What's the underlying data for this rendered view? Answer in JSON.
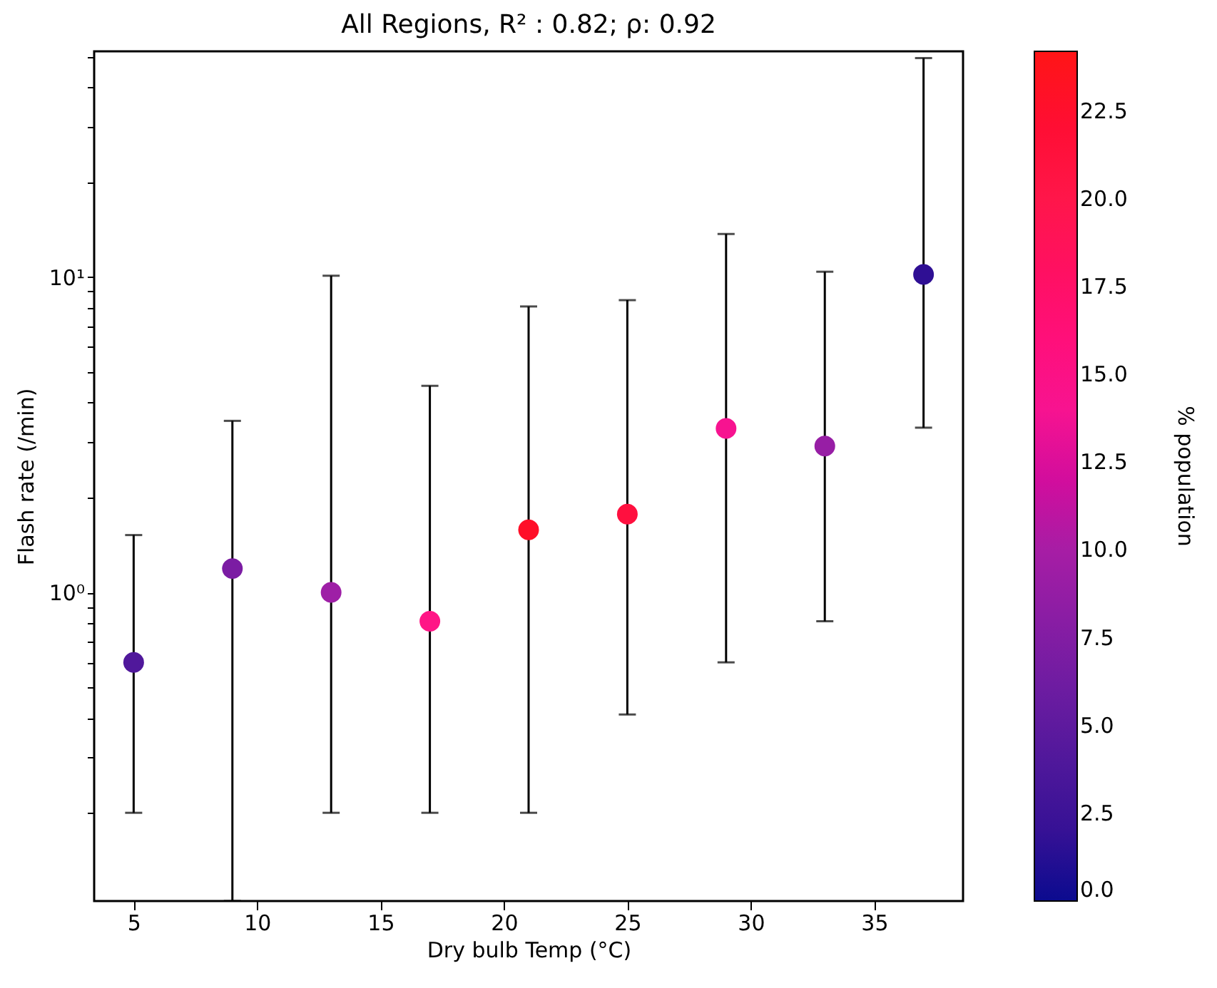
{
  "chart_data": {
    "type": "scatter",
    "title": "All Regions, R² : 0.82; ρ: 0.92",
    "xlabel": "Dry bulb Temp (°C)",
    "ylabel": "Flash rate (/min)",
    "clabel": "% population",
    "x": [
      5,
      9,
      13,
      17,
      21,
      25,
      29,
      33,
      37
    ],
    "values": [
      0.6,
      1.19,
      1.0,
      0.81,
      1.58,
      1.77,
      3.31,
      2.91,
      10.2
    ],
    "errors": [
      [
        0.2,
        1.52
      ],
      [
        0.105,
        3.5
      ],
      [
        0.2,
        10.1
      ],
      [
        0.2,
        4.52
      ],
      [
        0.2,
        8.07
      ],
      [
        0.41,
        8.45
      ],
      [
        0.6,
        13.7
      ],
      [
        0.81,
        10.4
      ],
      [
        3.33,
        49.5
      ]
    ],
    "cvalues": [
      4,
      7,
      9.5,
      15,
      23,
      21,
      14,
      9,
      1.5
    ],
    "clim": [
      0,
      24.2
    ],
    "cticks": [
      {
        "value": 0,
        "label": "0.0"
      },
      {
        "value": 2.5,
        "label": "2.5"
      },
      {
        "value": 5,
        "label": "5.0"
      },
      {
        "value": 7.5,
        "label": "7.5"
      },
      {
        "value": 10,
        "label": "10.0"
      },
      {
        "value": 12.5,
        "label": "12.5"
      },
      {
        "value": 15,
        "label": "15.0"
      },
      {
        "value": 17.5,
        "label": "17.5"
      },
      {
        "value": 20,
        "label": "20.0"
      },
      {
        "value": 22.5,
        "label": "22.5"
      }
    ],
    "xlim": [
      3.4,
      38.6
    ],
    "xticks": [
      5,
      10,
      15,
      20,
      25,
      30,
      35
    ],
    "ylim": [
      0.105,
      52
    ],
    "log": true,
    "yticks": [
      {
        "value": 0.2,
        "label": null
      },
      {
        "value": 0.3,
        "label": null
      },
      {
        "value": 0.4,
        "label": null
      },
      {
        "value": 0.5,
        "label": null
      },
      {
        "value": 0.6,
        "label": null
      },
      {
        "value": 0.7,
        "label": null
      },
      {
        "value": 0.8,
        "label": null
      },
      {
        "value": 0.9,
        "label": null
      },
      {
        "value": 1,
        "label": "10⁰"
      },
      {
        "value": 2,
        "label": null
      },
      {
        "value": 3,
        "label": null
      },
      {
        "value": 4,
        "label": null
      },
      {
        "value": 5,
        "label": null
      },
      {
        "value": 6,
        "label": null
      },
      {
        "value": 7,
        "label": null
      },
      {
        "value": 8,
        "label": null
      },
      {
        "value": 9,
        "label": null
      },
      {
        "value": 10,
        "label": "10¹"
      },
      {
        "value": 20,
        "label": null
      },
      {
        "value": 30,
        "label": null
      },
      {
        "value": 40,
        "label": null
      },
      {
        "value": 50,
        "label": null
      }
    ],
    "grid": false,
    "marker": "circle"
  }
}
